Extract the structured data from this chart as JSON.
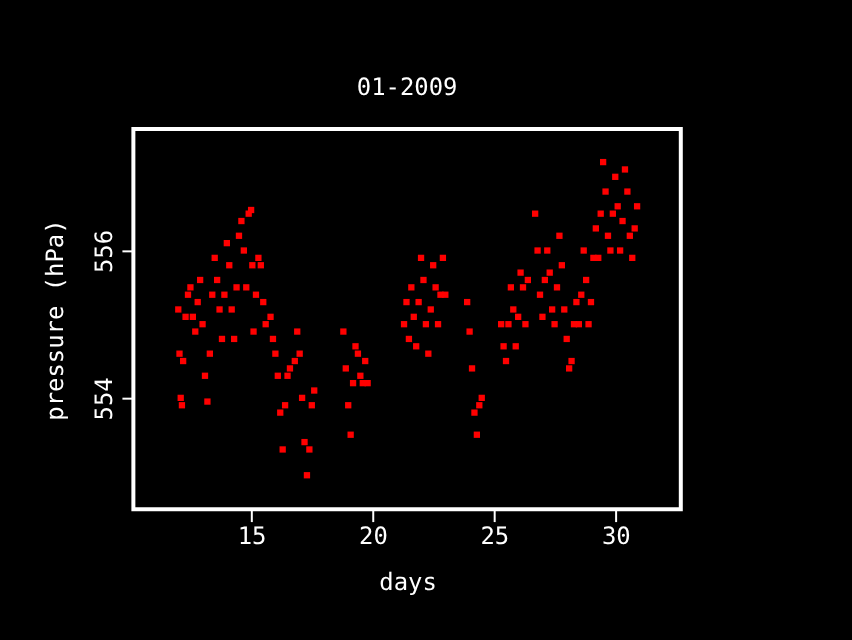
{
  "chart_data": {
    "type": "scatter",
    "title": "01-2009",
    "xlabel": "days",
    "ylabel": "pressure (hPa)",
    "xlim": [
      10.15,
      32.7
    ],
    "xticks": [
      15,
      20,
      25,
      30
    ],
    "ylim": [
      552.49,
      557.65
    ],
    "yticks": [
      554,
      556
    ],
    "grid": false,
    "marker": "square",
    "series": [
      {
        "color": "#ff0000",
        "x": [
          12.0,
          12.05,
          12.1,
          12.15,
          12.2,
          12.3,
          12.4,
          12.5,
          12.6,
          12.7,
          12.8,
          12.9,
          13.0,
          13.1,
          13.2,
          13.3,
          13.4,
          13.5,
          13.6,
          13.7,
          13.8,
          13.9,
          14.0,
          14.1,
          14.2,
          14.3,
          14.4,
          14.5,
          14.6,
          14.7,
          14.8,
          14.9,
          15.0,
          15.05,
          15.1,
          15.2,
          15.3,
          15.4,
          15.5,
          15.6,
          15.8,
          15.9,
          16.0,
          16.1,
          16.2,
          16.3,
          16.4,
          16.5,
          16.6,
          16.8,
          16.9,
          17.0,
          17.1,
          17.2,
          17.3,
          17.4,
          17.5,
          17.6,
          18.8,
          18.9,
          19.0,
          19.1,
          19.2,
          19.3,
          19.4,
          19.5,
          19.6,
          19.7,
          19.8,
          21.3,
          21.4,
          21.5,
          21.6,
          21.7,
          21.8,
          21.9,
          22.0,
          22.1,
          22.2,
          22.3,
          22.4,
          22.5,
          22.6,
          22.7,
          22.8,
          22.9,
          23.0,
          23.9,
          24.0,
          24.1,
          24.2,
          24.3,
          24.4,
          24.5,
          25.3,
          25.4,
          25.5,
          25.6,
          25.7,
          25.8,
          25.9,
          26.0,
          26.1,
          26.2,
          26.3,
          26.4,
          26.7,
          26.8,
          26.9,
          27.0,
          27.1,
          27.2,
          27.3,
          27.4,
          27.5,
          27.6,
          27.7,
          27.8,
          27.9,
          28.0,
          28.1,
          28.2,
          28.3,
          28.4,
          28.5,
          28.6,
          28.7,
          28.8,
          28.9,
          29.0,
          29.1,
          29.2,
          29.3,
          29.4,
          29.5,
          29.6,
          29.7,
          29.8,
          29.9,
          30.0,
          30.1,
          30.2,
          30.3,
          30.4,
          30.5,
          30.6,
          30.7,
          30.8,
          30.9
        ],
        "values": [
          555.2,
          554.6,
          554.0,
          553.9,
          554.5,
          555.1,
          555.4,
          555.5,
          555.1,
          554.9,
          555.3,
          555.6,
          555.0,
          554.3,
          553.95,
          554.6,
          555.4,
          555.9,
          555.6,
          555.2,
          554.8,
          555.4,
          556.1,
          555.8,
          555.2,
          554.8,
          555.5,
          556.2,
          556.4,
          556.0,
          555.5,
          556.5,
          556.55,
          555.8,
          554.9,
          555.4,
          555.9,
          555.8,
          555.3,
          555.0,
          555.1,
          554.8,
          554.6,
          554.3,
          553.8,
          553.3,
          553.9,
          554.3,
          554.4,
          554.5,
          554.9,
          554.6,
          554.0,
          553.4,
          552.95,
          553.3,
          553.9,
          554.1,
          554.9,
          554.4,
          553.9,
          553.5,
          554.2,
          554.7,
          554.6,
          554.3,
          554.2,
          554.5,
          554.2,
          555.0,
          555.3,
          554.8,
          555.5,
          555.1,
          554.7,
          555.3,
          555.9,
          555.6,
          555.0,
          554.6,
          555.2,
          555.8,
          555.5,
          555.0,
          555.4,
          555.9,
          555.4,
          555.3,
          554.9,
          554.4,
          553.8,
          553.5,
          553.9,
          554.0,
          555.0,
          554.7,
          554.5,
          555.0,
          555.5,
          555.2,
          554.7,
          555.1,
          555.7,
          555.5,
          555.0,
          555.6,
          556.5,
          556.0,
          555.4,
          555.1,
          555.6,
          556.0,
          555.7,
          555.2,
          555.0,
          555.5,
          556.2,
          555.8,
          555.2,
          554.8,
          554.4,
          554.5,
          555.0,
          555.3,
          555.0,
          555.4,
          556.0,
          555.6,
          555.0,
          555.3,
          555.9,
          556.3,
          555.9,
          556.5,
          557.2,
          556.8,
          556.2,
          556.0,
          556.5,
          557.0,
          556.6,
          556.0,
          556.4,
          557.1,
          556.8,
          556.2,
          555.9,
          556.3,
          556.6
        ]
      }
    ]
  }
}
